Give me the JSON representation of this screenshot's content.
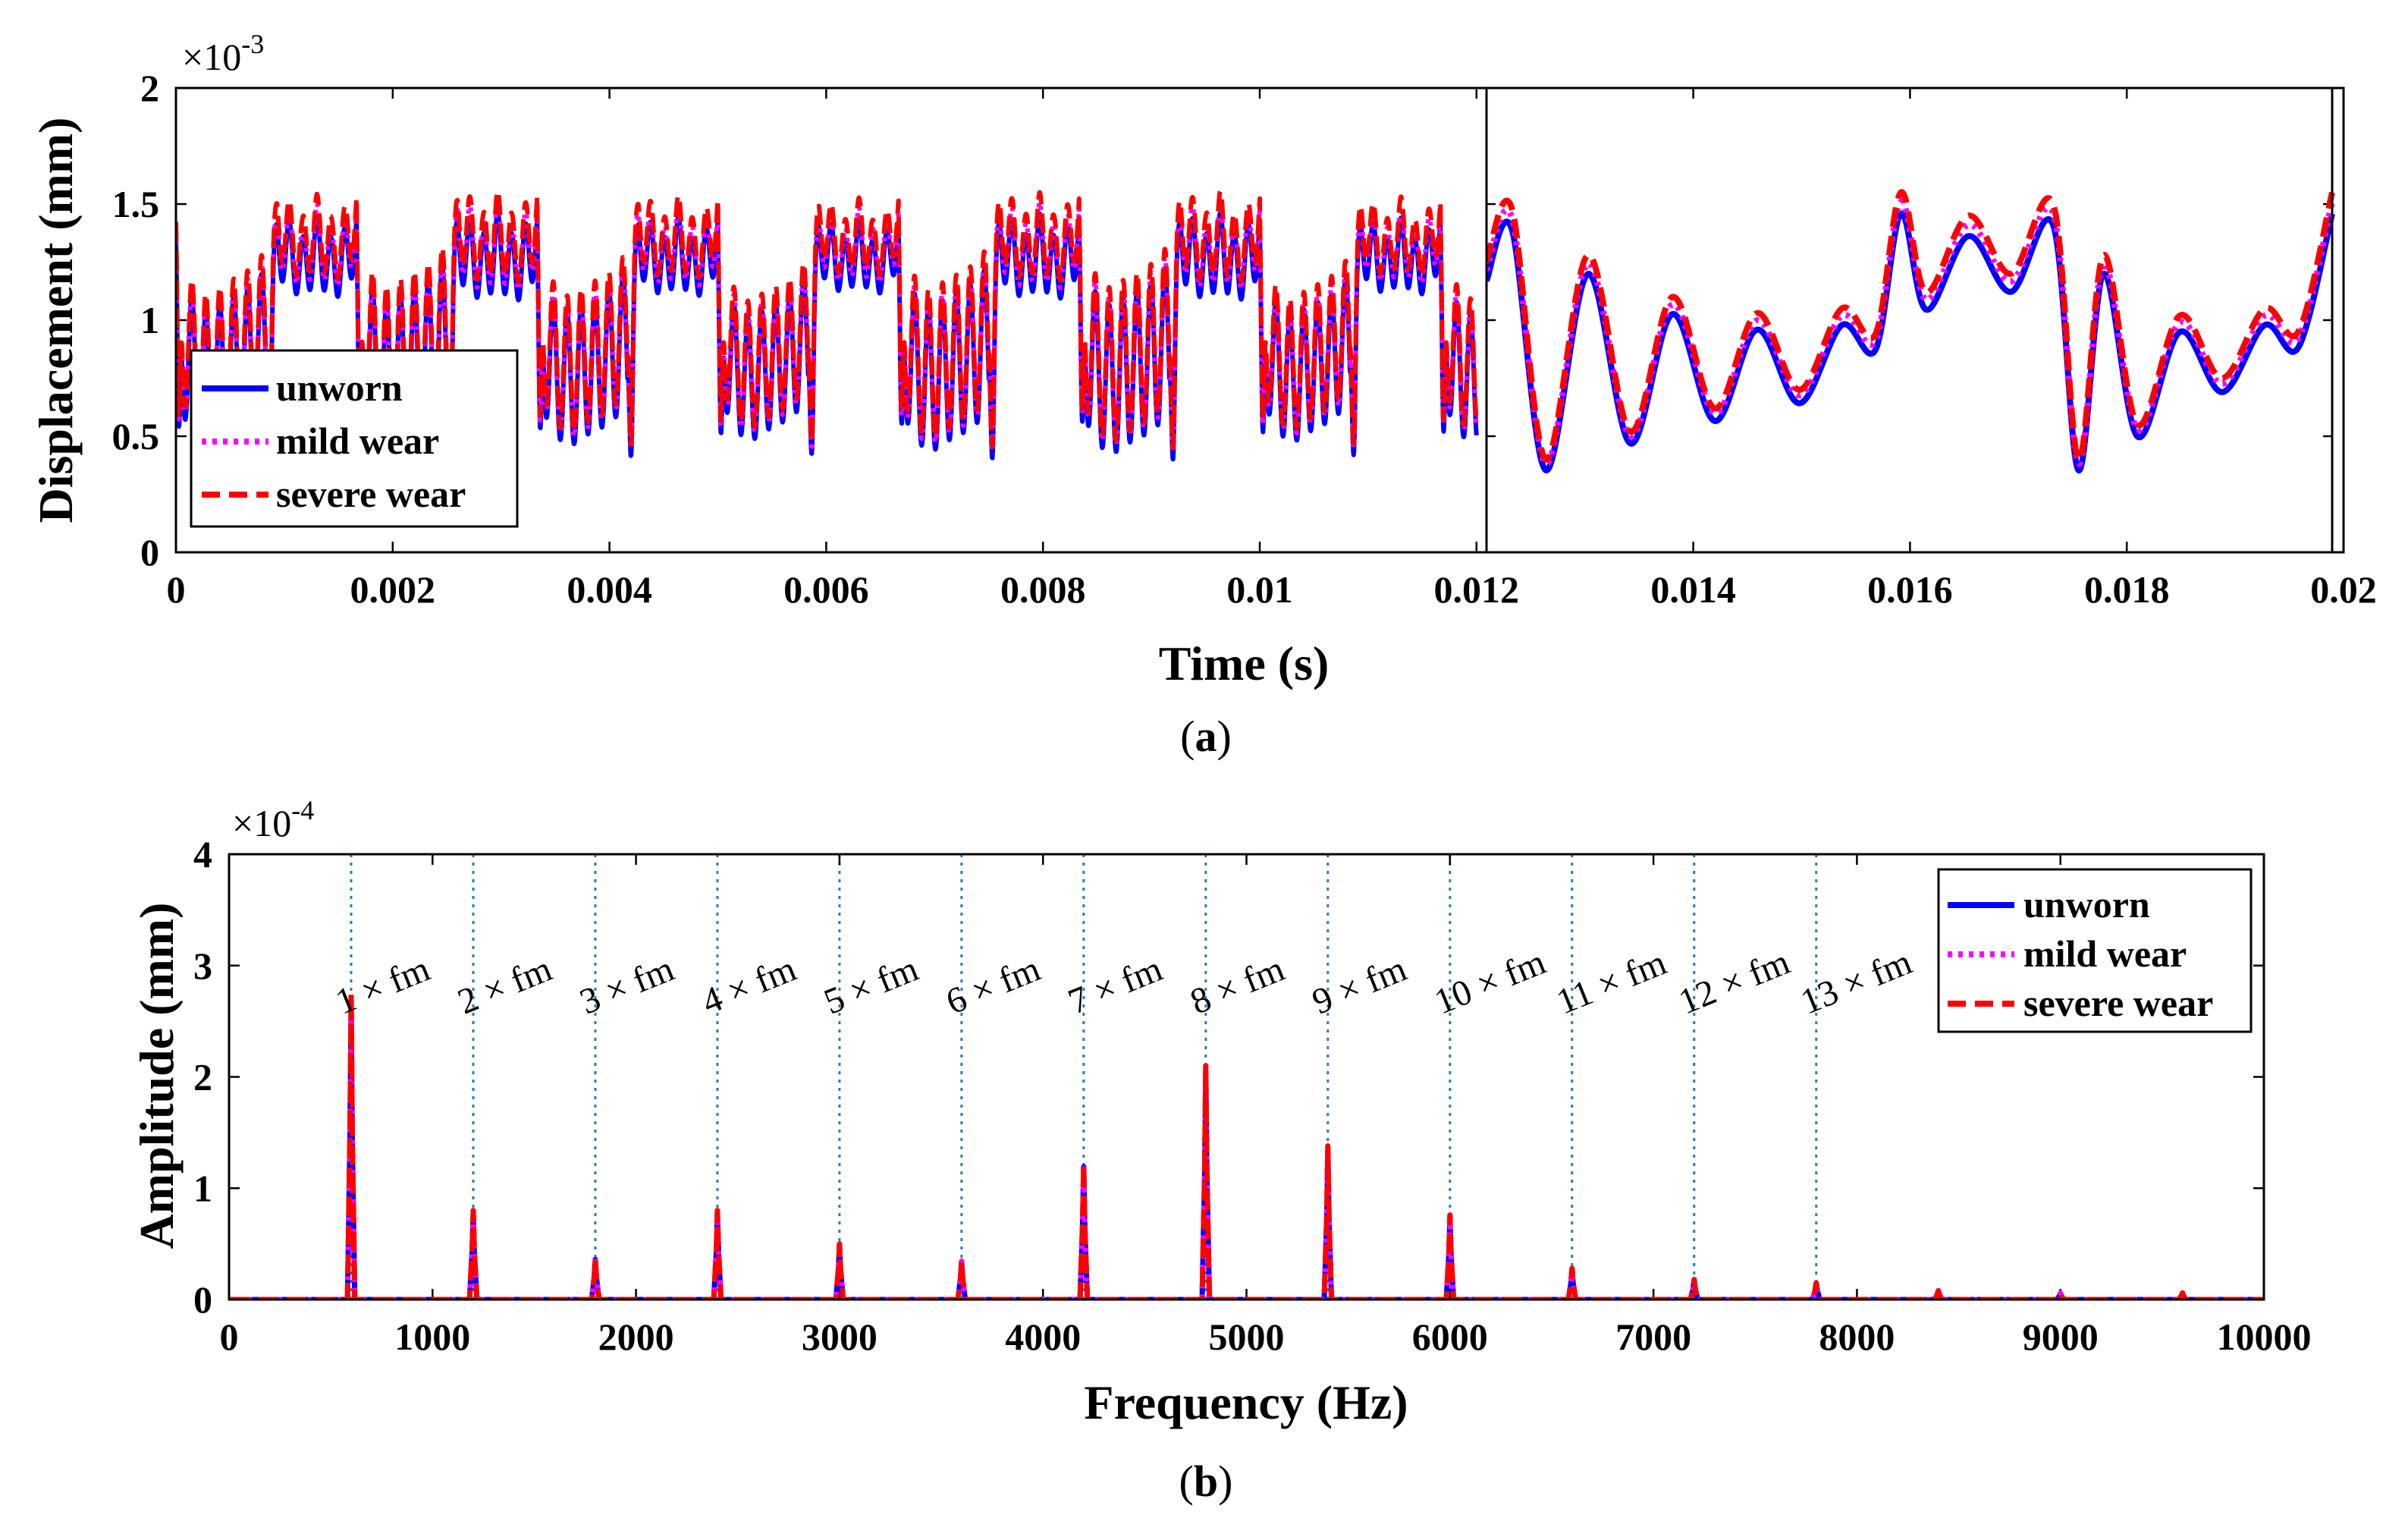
{
  "chart_data": [
    {
      "id": "a",
      "type": "line",
      "caption": "(a)",
      "caption_letter": "a",
      "xlabel": "Time (s)",
      "ylabel": "Displacement (mm)",
      "y_multiplier": "×10",
      "y_exponent": "-3",
      "xlim": [
        0,
        0.02
      ],
      "ylim": [
        0,
        2
      ],
      "xticks": [
        0,
        0.002,
        0.004,
        0.006,
        0.008,
        0.01,
        0.012,
        0.014,
        0.016,
        0.018,
        0.02
      ],
      "xtick_labels": [
        "0",
        "0.002",
        "0.004",
        "0.006",
        "0.008",
        "0.01",
        "0.012",
        "0.014",
        "0.016",
        "0.018",
        "0.02"
      ],
      "yticks": [
        0,
        0.5,
        1,
        1.5,
        2
      ],
      "ytick_labels": [
        "0",
        "0.5",
        "1",
        "1.5",
        "2"
      ],
      "grid": false,
      "legend_position": "lower-left",
      "series": [
        {
          "name": "unworn",
          "color": "#0000ff",
          "style": "solid",
          "scale": 0.96,
          "offset": -0.03
        },
        {
          "name": "mild wear",
          "color": "#ff00ff",
          "style": "dotted",
          "scale": 0.98,
          "offset": -0.01
        },
        {
          "name": "severe wear",
          "color": "#ff0000",
          "style": "dashed",
          "scale": 1.0,
          "offset": 0.0
        }
      ],
      "period": 0.001667,
      "mean_level": 1.0,
      "signal_range": [
        0.35,
        1.62
      ],
      "zoom_window": {
        "xlim": [
          0.012,
          0.02
        ],
        "x_from": 0.012,
        "x_to": 0.0136
      },
      "zoom_profile_t": [
        0.0,
        0.03,
        0.07,
        0.12,
        0.17,
        0.22,
        0.27,
        0.32,
        0.37,
        0.42,
        0.46,
        0.49,
        0.52,
        0.57,
        0.62,
        0.67,
        0.7,
        0.73,
        0.77,
        0.82,
        0.87,
        0.92,
        0.96,
        1.0
      ],
      "zoom_profile_y": [
        1.25,
        1.48,
        0.4,
        1.28,
        0.52,
        1.1,
        0.62,
        1.03,
        0.7,
        1.05,
        0.94,
        1.55,
        1.12,
        1.45,
        1.2,
        1.5,
        0.4,
        1.28,
        0.55,
        1.02,
        0.75,
        1.05,
        0.95,
        1.55
      ]
    },
    {
      "id": "b",
      "type": "line",
      "caption": "(b)",
      "caption_letter": "b",
      "xlabel": "Frequency (Hz)",
      "ylabel": "Amplitude (mm)",
      "y_multiplier": "×10",
      "y_exponent": "-4",
      "xlim": [
        0,
        10000
      ],
      "ylim": [
        0,
        4
      ],
      "xticks": [
        0,
        1000,
        2000,
        3000,
        4000,
        5000,
        6000,
        7000,
        8000,
        9000,
        10000
      ],
      "xtick_labels": [
        "0",
        "1000",
        "2000",
        "3000",
        "4000",
        "5000",
        "6000",
        "7000",
        "8000",
        "9000",
        "10000"
      ],
      "yticks": [
        0,
        1,
        2,
        3,
        4
      ],
      "ytick_labels": [
        "0",
        "1",
        "2",
        "3",
        "4"
      ],
      "grid": false,
      "legend_position": "top-right",
      "series": [
        {
          "name": "unworn",
          "color": "#0000ff",
          "style": "solid"
        },
        {
          "name": "mild wear",
          "color": "#ff00ff",
          "style": "dotted"
        },
        {
          "name": "severe wear",
          "color": "#ff0000",
          "style": "dashed"
        }
      ],
      "peaks": {
        "frequencies": [
          600,
          1200,
          1800,
          2400,
          3000,
          3600,
          4200,
          4800,
          5400,
          6000,
          6600,
          7200,
          7800,
          8400,
          9000,
          9600
        ],
        "amplitudes": [
          2.75,
          0.8,
          0.37,
          0.8,
          0.5,
          0.35,
          1.23,
          2.1,
          1.38,
          0.76,
          0.28,
          0.18,
          0.15,
          0.08,
          0.06,
          0.06
        ]
      },
      "mesh_lines": {
        "frequencies": [
          600,
          1200,
          1800,
          2400,
          3000,
          3600,
          4200,
          4800,
          5400,
          6000,
          6600,
          7200,
          7800
        ],
        "color": "#2a7ab8"
      },
      "annotations": [
        "1 × fm",
        "2 × fm",
        "3 × fm",
        "4 × fm",
        "5 × fm",
        "6 × fm",
        "7 × fm",
        "8 × fm",
        "9 × fm",
        "10 × fm",
        "11 × fm",
        "12 × fm",
        "13 × fm"
      ],
      "annotation_y": 3.05
    }
  ]
}
